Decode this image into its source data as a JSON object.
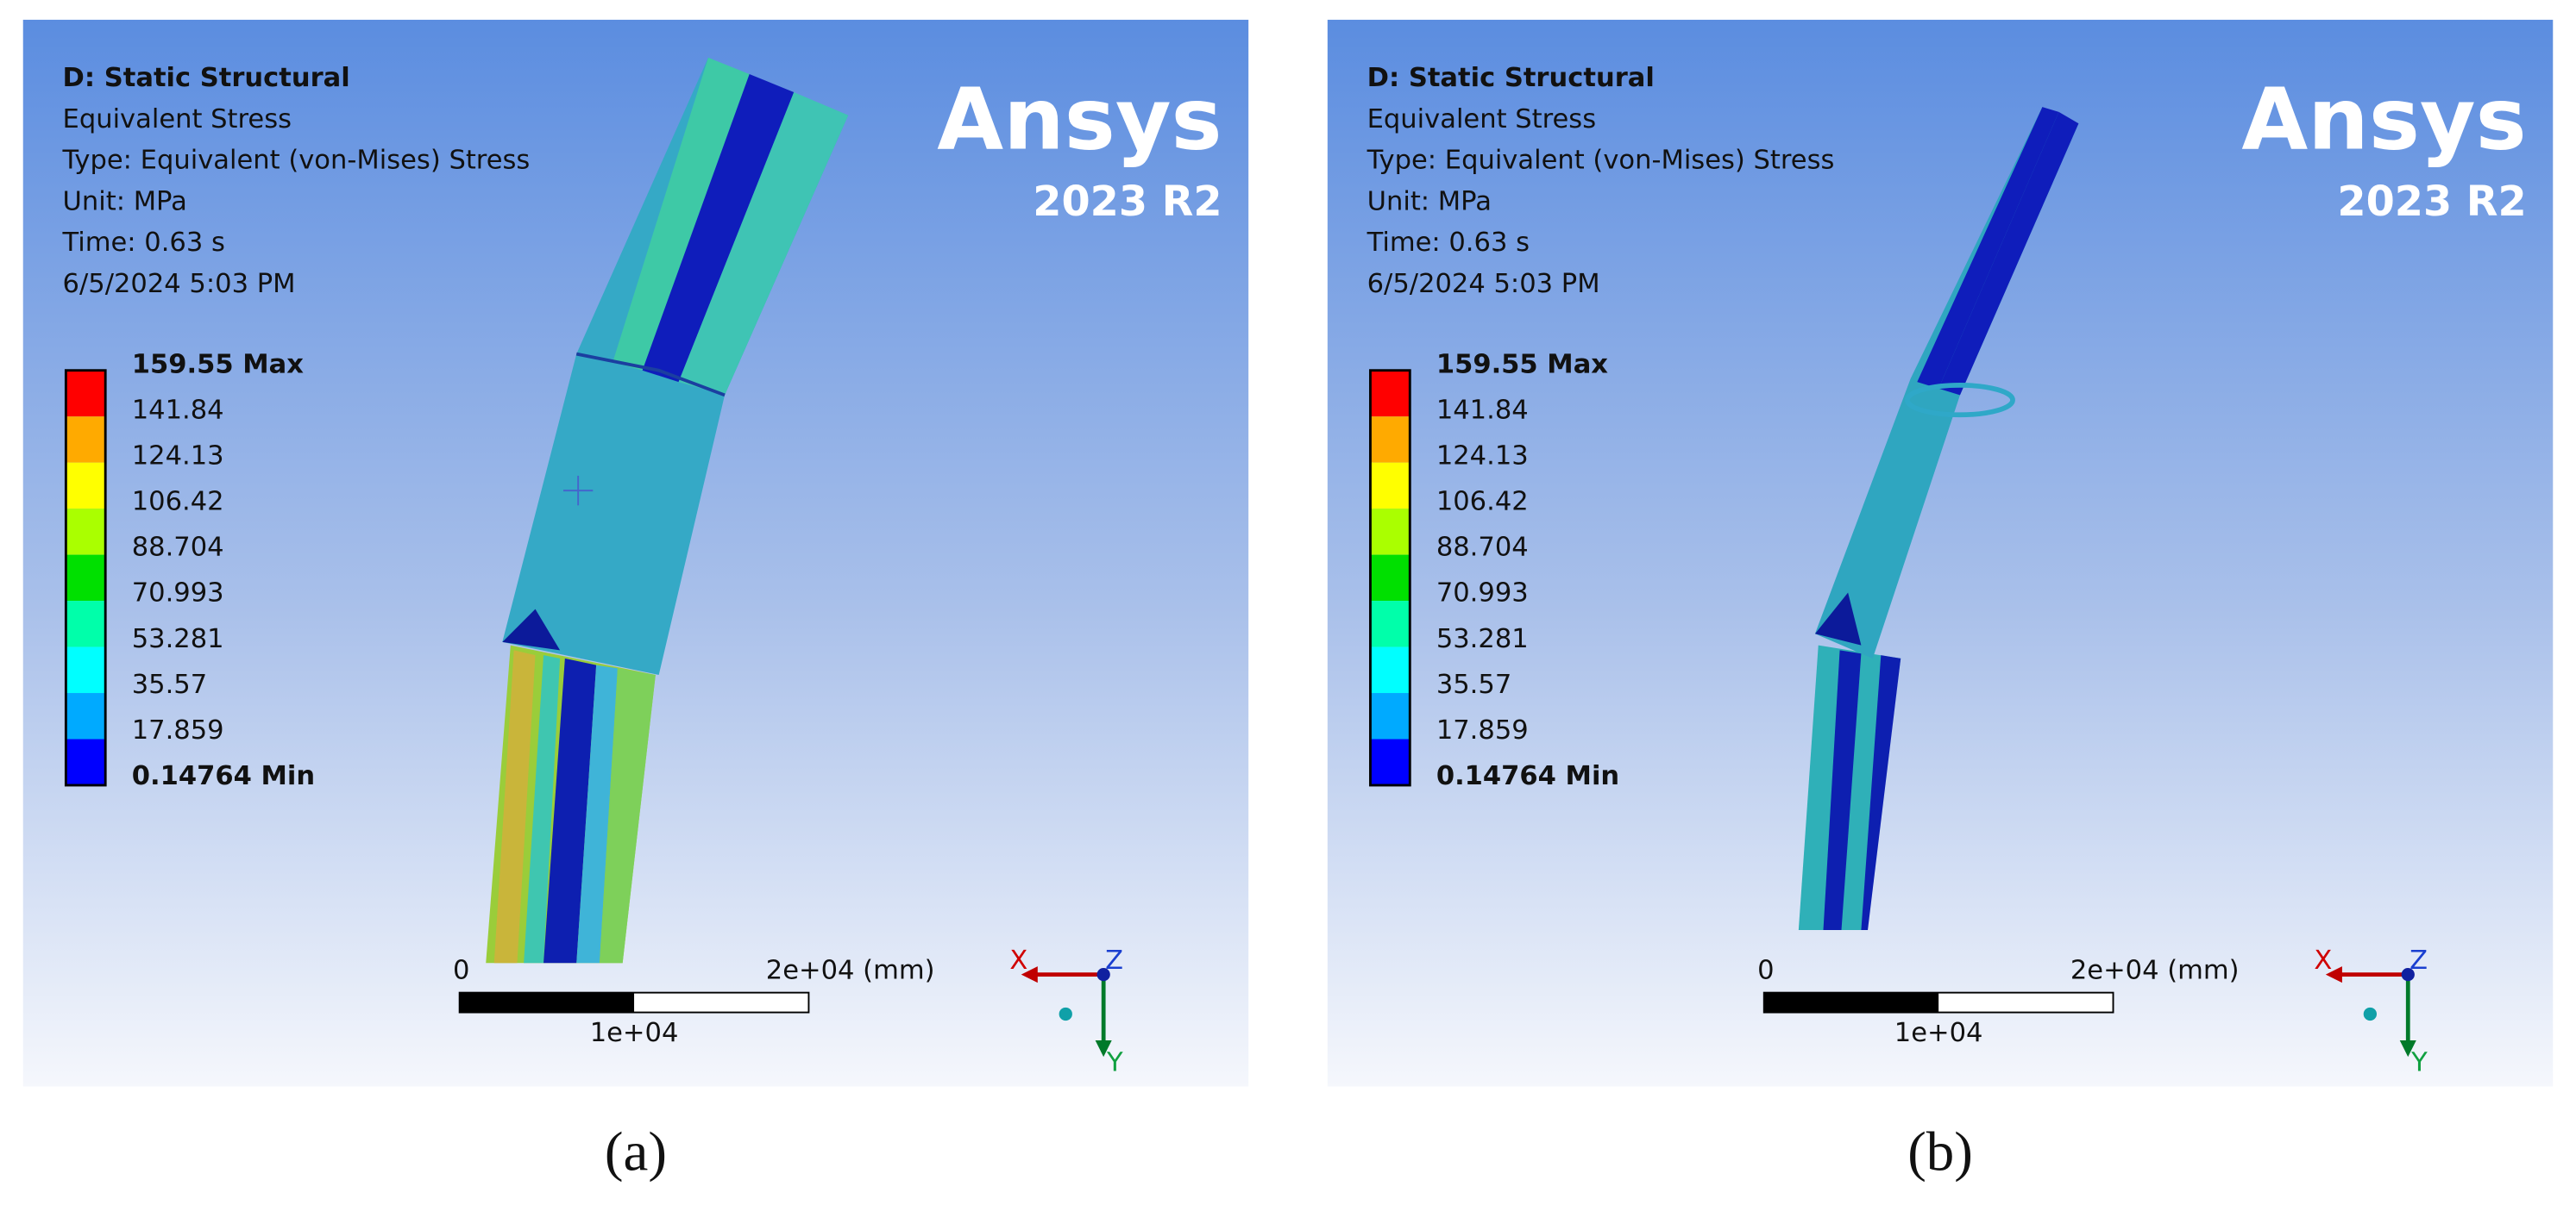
{
  "panels": [
    {
      "header": {
        "title": "D: Static Structural",
        "lines": [
          "Equivalent Stress",
          "Type: Equivalent (von-Mises) Stress",
          "Unit: MPa",
          "Time: 0.63 s",
          "6/5/2024 5:03 PM"
        ]
      },
      "legend": {
        "max_label": "159.55 Max",
        "labels": [
          "141.84",
          "124.13",
          "106.42",
          "88.704",
          "70.993",
          "53.281",
          "35.57",
          "17.859"
        ],
        "min_label": "0.14764 Min",
        "colors": [
          "#ff0000",
          "#ffaa00",
          "#ffff00",
          "#aaff00",
          "#00e000",
          "#00ffaa",
          "#00ffff",
          "#00aaff",
          "#0000ff"
        ]
      },
      "logo": {
        "name": "Ansys",
        "version": "2023 R2"
      },
      "scale": {
        "start": "0",
        "end": "2e+04 (mm)",
        "mid": "1e+04"
      },
      "triad": {
        "x": "X",
        "y": "Y",
        "z": "Z"
      },
      "caption": "(a)"
    },
    {
      "header": {
        "title": "D: Static Structural",
        "lines": [
          "Equivalent Stress",
          "Type: Equivalent (von-Mises) Stress",
          "Unit: MPa",
          "Time: 0.63 s",
          "6/5/2024 5:03 PM"
        ]
      },
      "legend": {
        "max_label": "159.55 Max",
        "labels": [
          "141.84",
          "124.13",
          "106.42",
          "88.704",
          "70.993",
          "53.281",
          "35.57",
          "17.859"
        ],
        "min_label": "0.14764 Min",
        "colors": [
          "#ff0000",
          "#ffaa00",
          "#ffff00",
          "#aaff00",
          "#00e000",
          "#00ffaa",
          "#00ffff",
          "#00aaff",
          "#0000ff"
        ]
      },
      "logo": {
        "name": "Ansys",
        "version": "2023 R2"
      },
      "scale": {
        "start": "0",
        "end": "2e+04 (mm)",
        "mid": "1e+04"
      },
      "triad": {
        "x": "X",
        "y": "Y",
        "z": "Z"
      },
      "caption": "(b)"
    }
  ]
}
